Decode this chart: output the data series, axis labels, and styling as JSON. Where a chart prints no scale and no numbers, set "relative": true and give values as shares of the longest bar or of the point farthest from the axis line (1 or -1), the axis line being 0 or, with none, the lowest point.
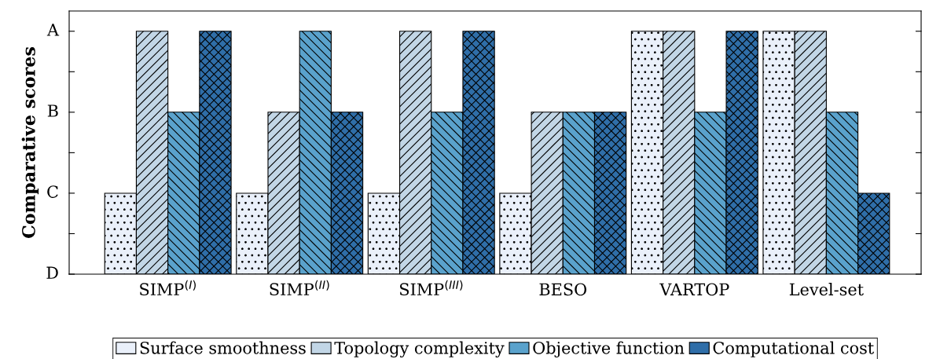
{
  "chart_data": {
    "type": "bar",
    "ylabel": "Comparative scores",
    "relative": true,
    "categories": [
      "SIMP$^{(I)}$",
      "SIMP$^{(II)}$",
      "SIMP$^{(III)}$",
      "BESO",
      "VARTOP",
      "Level-set"
    ],
    "series": [
      {
        "name": "Surface smoothness",
        "color": "#eaf0fa",
        "values": [
          0.333,
          0.333,
          0.333,
          0.333,
          1,
          1
        ]
      },
      {
        "name": "Topology complexity",
        "color": "#c2d6e6",
        "values": [
          1,
          0.667,
          1,
          0.667,
          1,
          1
        ]
      },
      {
        "name": "Objective function",
        "color": "#5aa2cc",
        "values": [
          0.667,
          1,
          0.667,
          0.667,
          0.667,
          0.667
        ]
      },
      {
        "name": "Computational cost",
        "color": "#2f6ea8",
        "values": [
          1,
          0.667,
          1,
          0.667,
          1,
          0.333
        ]
      }
    ],
    "annotations": [
      "D",
      "C",
      "B",
      "A"
    ],
    "grid": false,
    "legend": "bottom"
  }
}
